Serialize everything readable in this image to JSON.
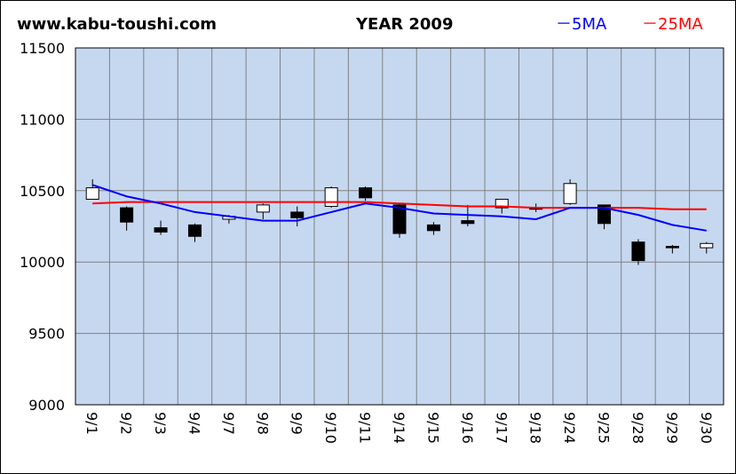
{
  "header": {
    "site": "www.kabu-toushi.com",
    "title": "YEAR 2009",
    "legend_5ma": "－5MA",
    "legend_25ma": "－25MA"
  },
  "colors": {
    "plot_bg": "#c6d8f0",
    "grid": "#808080",
    "ma5": "#0000ff",
    "ma25": "#ff0000",
    "up_candle": "#ffffff",
    "down_candle": "#000000"
  },
  "chart_data": {
    "type": "candlestick",
    "title": "YEAR 2009",
    "ylim": [
      9000,
      11500
    ],
    "yticks": [
      9000,
      9500,
      10000,
      10500,
      11000,
      11500
    ],
    "categories": [
      "9/1",
      "9/2",
      "9/3",
      "9/4",
      "9/7",
      "9/8",
      "9/9",
      "9/10",
      "9/11",
      "9/14",
      "9/15",
      "9/16",
      "9/17",
      "9/18",
      "9/24",
      "9/25",
      "9/28",
      "9/29",
      "9/30"
    ],
    "open": [
      10440,
      10380,
      10240,
      10260,
      10300,
      10350,
      10350,
      10390,
      10520,
      10400,
      10260,
      10290,
      10380,
      10380,
      10410,
      10400,
      10140,
      10110,
      10100
    ],
    "high": [
      10580,
      10390,
      10290,
      10270,
      10330,
      10410,
      10390,
      10530,
      10530,
      10410,
      10280,
      10400,
      10440,
      10410,
      10580,
      10400,
      10160,
      10120,
      10140
    ],
    "low": [
      10440,
      10220,
      10190,
      10140,
      10270,
      10300,
      10250,
      10380,
      10430,
      10170,
      10190,
      10250,
      10340,
      10350,
      10400,
      10230,
      9980,
      10060,
      10060
    ],
    "close": [
      10520,
      10280,
      10210,
      10180,
      10320,
      10400,
      10310,
      10520,
      10450,
      10200,
      10220,
      10270,
      10440,
      10370,
      10550,
      10270,
      10010,
      10100,
      10130
    ],
    "series": [
      {
        "name": "5MA",
        "values": [
          10540,
          10460,
          10410,
          10350,
          10320,
          10290,
          10290,
          10350,
          10410,
          10380,
          10340,
          10330,
          10320,
          10300,
          10380,
          10380,
          10330,
          10260,
          10220
        ]
      },
      {
        "name": "25MA",
        "values": [
          10410,
          10420,
          10420,
          10420,
          10420,
          10420,
          10420,
          10420,
          10420,
          10410,
          10400,
          10390,
          10390,
          10380,
          10380,
          10380,
          10380,
          10370,
          10370
        ]
      }
    ]
  }
}
